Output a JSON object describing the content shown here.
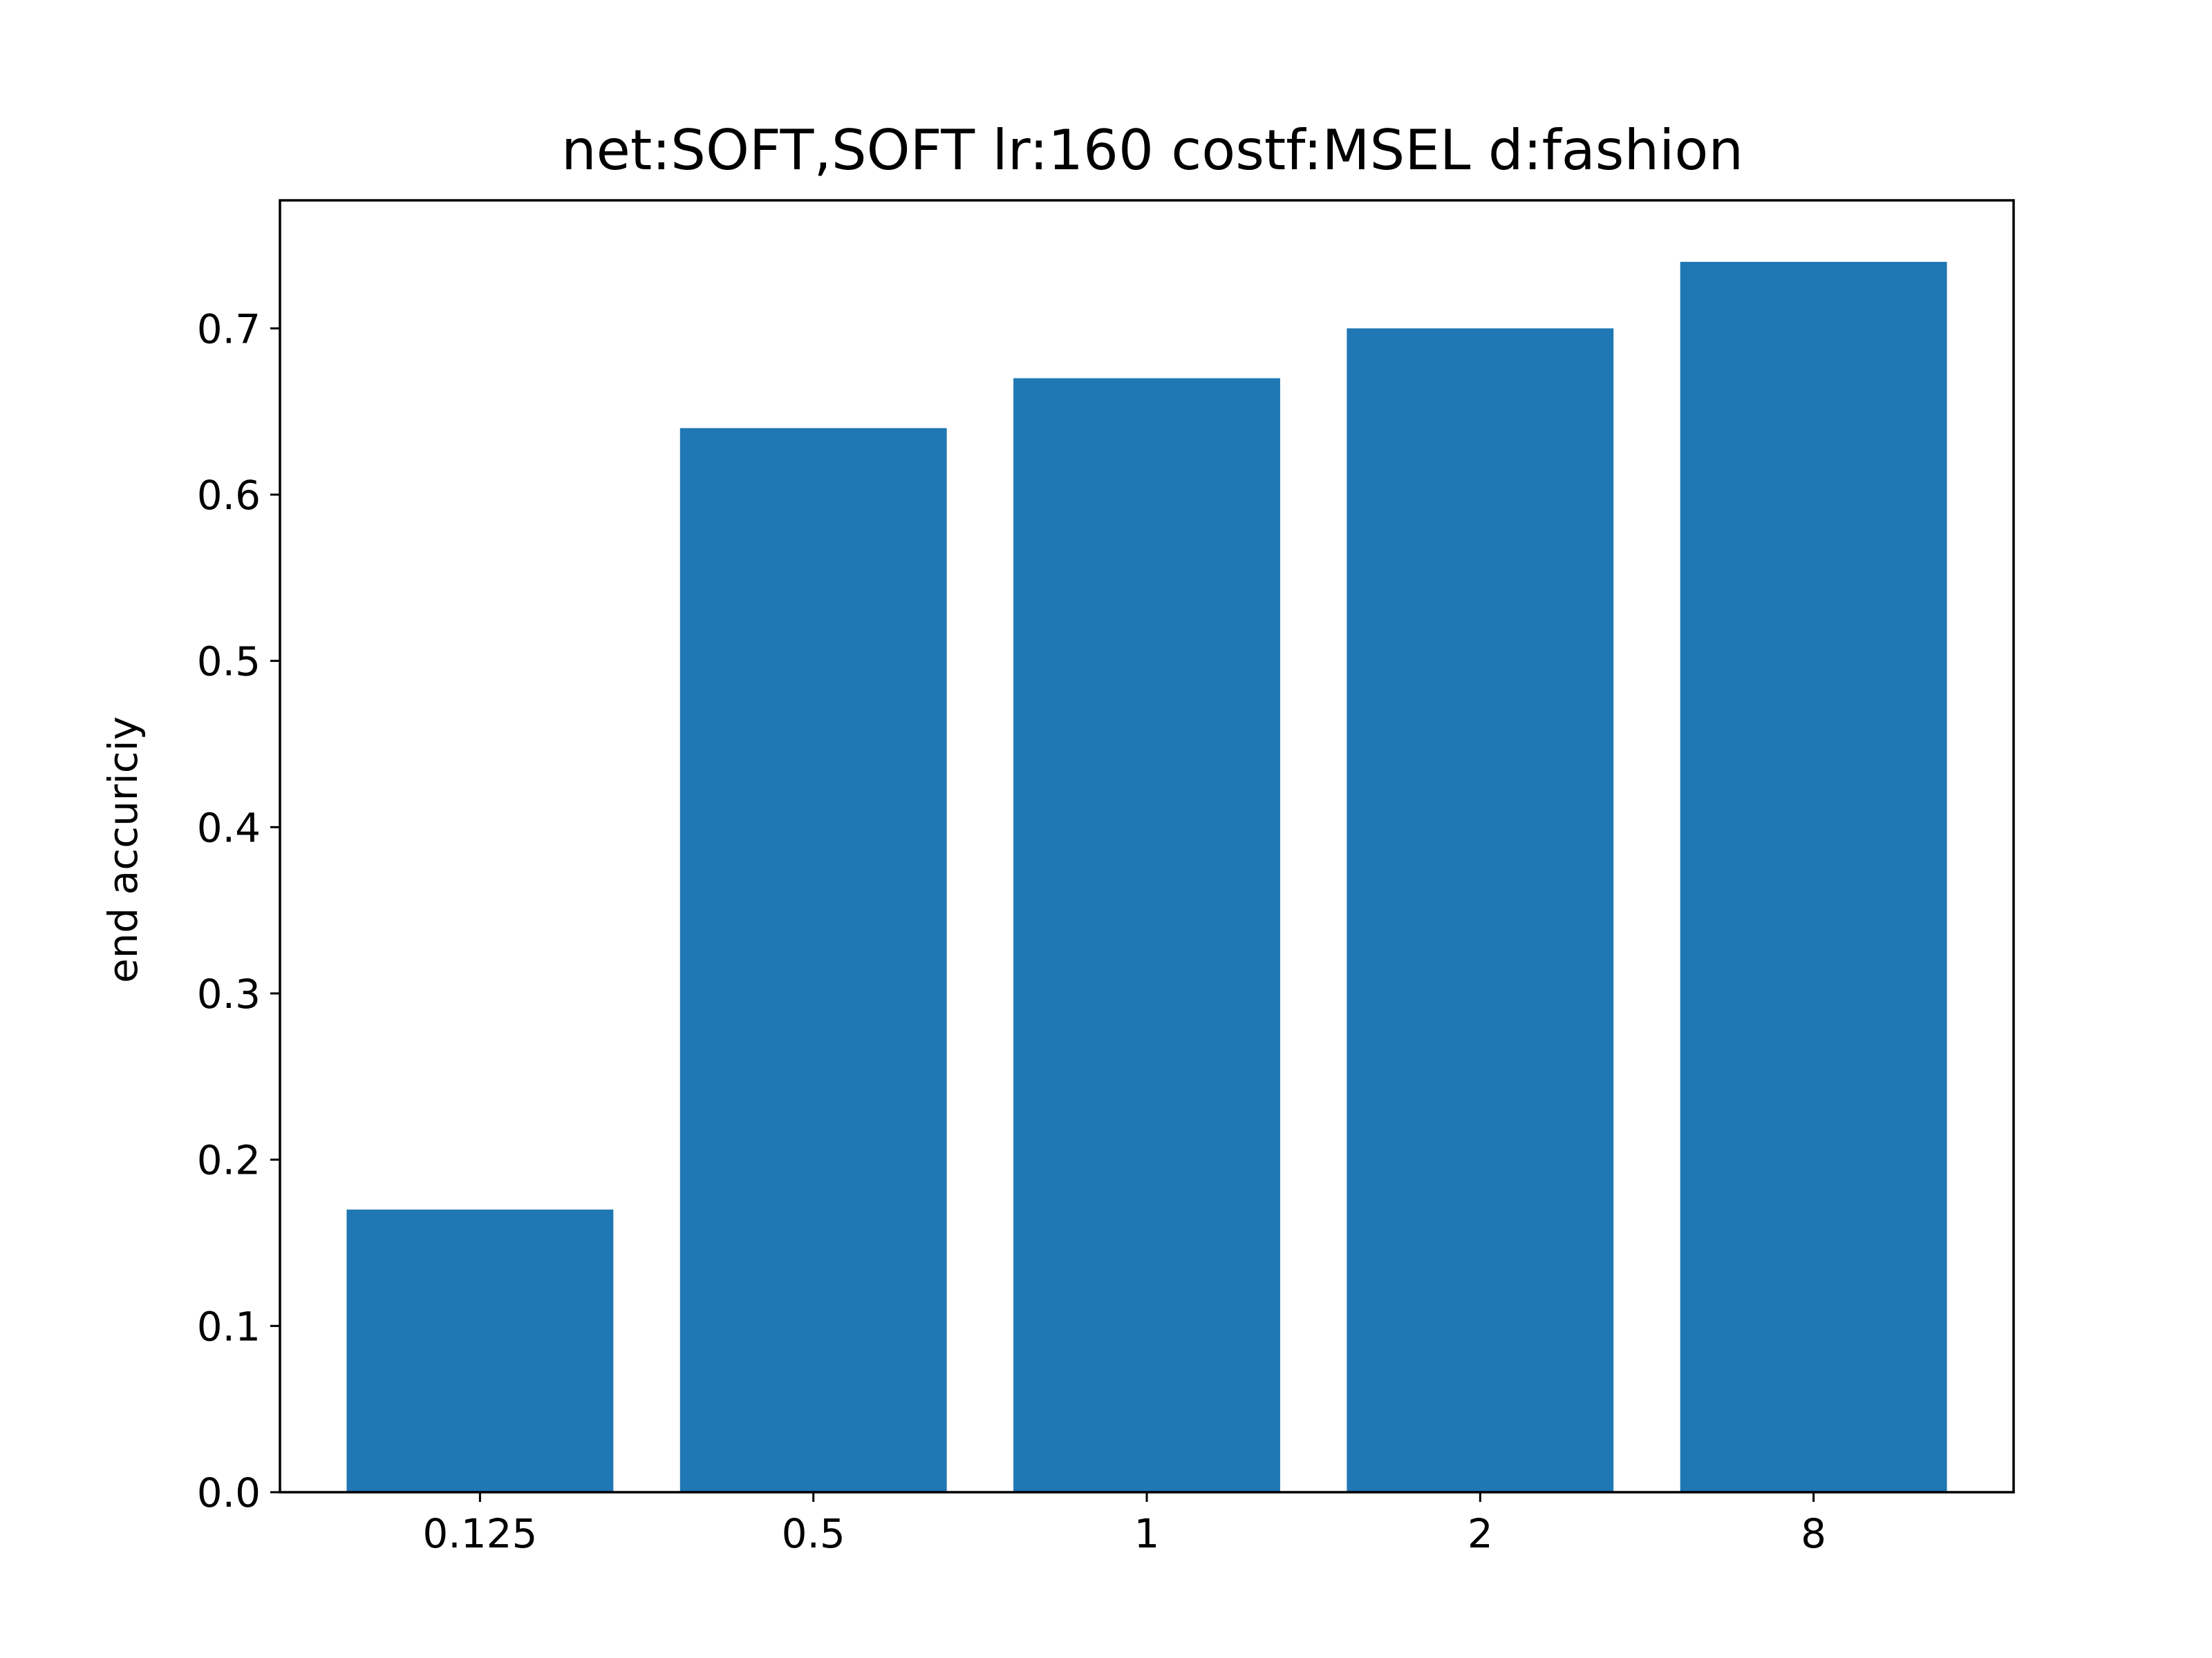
{
  "chart_data": {
    "type": "bar",
    "title": "net:SOFT,SOFT lr:160 costf:MSEL d:fashion",
    "xlabel": "",
    "ylabel": "end accuriciy",
    "categories": [
      "0.125",
      "0.5",
      "1",
      "2",
      "8"
    ],
    "values": [
      0.17,
      0.64,
      0.67,
      0.7,
      0.74
    ],
    "ylim": [
      0,
      0.777
    ],
    "yticks": [
      "0.0",
      "0.1",
      "0.2",
      "0.3",
      "0.4",
      "0.5",
      "0.6",
      "0.7"
    ],
    "grid": false,
    "legend": "none",
    "bar_color": "#1f77b4"
  }
}
